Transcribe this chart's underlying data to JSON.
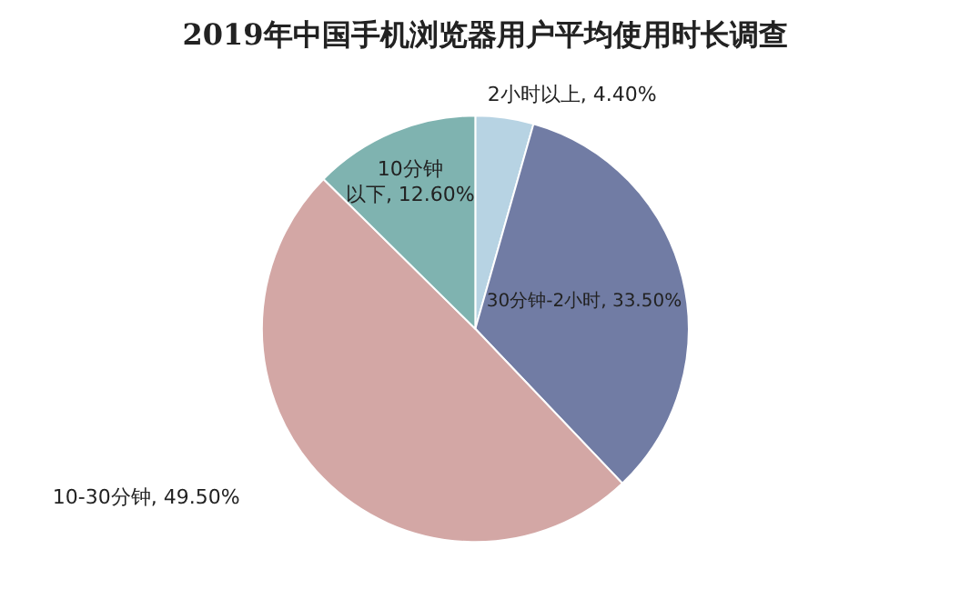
{
  "chart_data": {
    "type": "pie",
    "title": "2019年中国手机浏览器用户平均使用时长调查",
    "categories": [
      "2小时以上",
      "30分钟-2小时",
      "10-30分钟",
      "10分钟以下"
    ],
    "values": [
      4.4,
      33.5,
      49.5,
      12.6
    ],
    "value_labels": [
      "4.40%",
      "33.50%",
      "49.50%",
      "12.60%"
    ],
    "colors": [
      "#b7d3e3",
      "#717ca4",
      "#d3a7a5",
      "#7fb3b0"
    ]
  }
}
